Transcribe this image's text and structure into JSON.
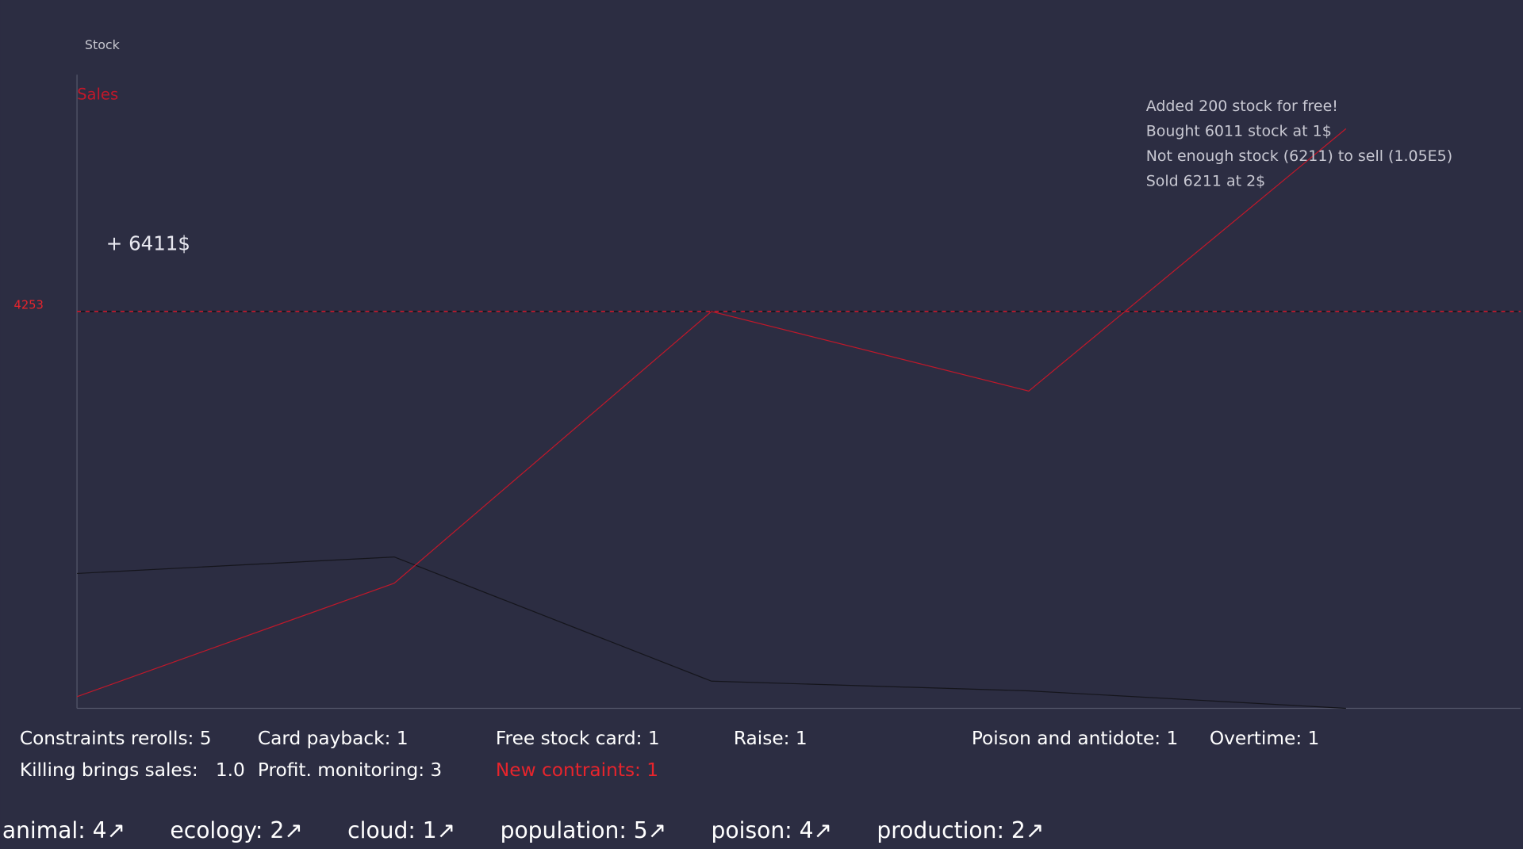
{
  "chart_data": {
    "type": "line",
    "categories": [
      null,
      null,
      null,
      null,
      null
    ],
    "series": [
      {
        "name": "Stock",
        "color": "#15151c",
        "values": [
          1445,
          1622,
          291,
          187,
          0
        ]
      },
      {
        "name": "Sales",
        "color": "#c0182a",
        "values": [
          125,
          1341,
          4253,
          3400,
          6211
        ]
      }
    ],
    "ylim": [
      0,
      6790
    ],
    "yticks": [
      4253
    ],
    "annotation": "+ 6411$"
  },
  "log": [
    "Added 200 stock for free!",
    "Bought 6011 stock at 1$",
    "Not enough stock (6211) to sell (1.05E5)",
    "Sold 6211 at 2$"
  ],
  "stats": [
    [
      {
        "text": "Constraints rerolls: 5",
        "color": "#ffffff"
      },
      {
        "text": "Card payback: 1",
        "color": "#ffffff"
      },
      {
        "text": "Free stock card: 1",
        "color": "#ffffff"
      },
      {
        "text": "Raise: 1",
        "color": "#ffffff"
      },
      {
        "text": "Poison and antidote: 1",
        "color": "#ffffff"
      },
      {
        "text": "Overtime: 1",
        "color": "#ffffff"
      }
    ],
    [
      {
        "text": "Killing brings sales:   1.0",
        "color": "#ffffff"
      },
      {
        "text": "Profit. monitoring: 3",
        "color": "#ffffff"
      },
      {
        "text": "New contraints: 1",
        "color": "#e8242c"
      }
    ]
  ],
  "tags": [
    "animal: 4↗",
    "ecology: 2↗",
    "cloud: 1↗",
    "population: 5↗",
    "poison: 4↗",
    "production: 2↗"
  ]
}
